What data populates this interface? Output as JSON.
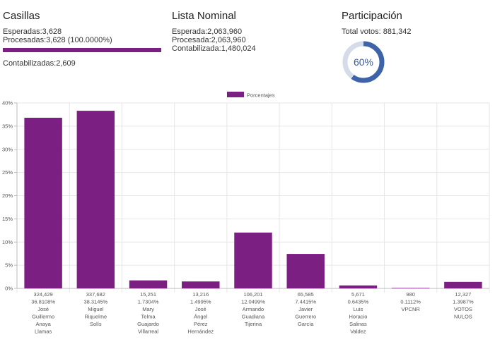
{
  "casillas": {
    "title": "Casillas",
    "esperadas": "Esperadas:3,628",
    "procesadas": "Procesadas:3,628 (100.0000%)",
    "progress_fraction": 1.0,
    "contabilizadas": "Contabilizadas:2,609"
  },
  "lista_nominal": {
    "title": "Lista Nominal",
    "esperada": "Esperada:2,063,960",
    "procesada": "Procesada:2,063,960",
    "contabilizada": "Contabilizada:1,480,024"
  },
  "participacion": {
    "title": "Participación",
    "total": "Total votos: 881,342",
    "percent_label": "60%",
    "fraction": 0.6
  },
  "colors": {
    "bar": "#7b1f82",
    "donut_fill": "#3f63a8",
    "donut_track": "#d5dbe8"
  },
  "chart_data": {
    "type": "bar",
    "legend": "Porcentajes",
    "legend_position": "top-center",
    "grid": true,
    "ylim": [
      0,
      40
    ],
    "yticks": [
      "0%",
      "5%",
      "10%",
      "15%",
      "20%",
      "25%",
      "30%",
      "35%",
      "40%"
    ],
    "categories": [
      {
        "votes": "324,429",
        "pct": "36.8108%",
        "name": [
          "José",
          "Guillermo",
          "Anaya",
          "Llamas"
        ]
      },
      {
        "votes": "337,682",
        "pct": "38.3145%",
        "name": [
          "Miguel",
          "Riquelme",
          "Solís"
        ]
      },
      {
        "votes": "15,251",
        "pct": "1.7304%",
        "name": [
          "Mary",
          "Telma",
          "Guajardo",
          "Villarreal"
        ]
      },
      {
        "votes": "13,216",
        "pct": "1.4995%",
        "name": [
          "José",
          "Ángel",
          "Pérez",
          "Hernández"
        ]
      },
      {
        "votes": "106,201",
        "pct": "12.0499%",
        "name": [
          "Armando",
          "Guadiana",
          "Tijerina"
        ]
      },
      {
        "votes": "65,585",
        "pct": "7.4415%",
        "name": [
          "Javier",
          "Guerrero",
          "García"
        ]
      },
      {
        "votes": "5,671",
        "pct": "0.6435%",
        "name": [
          "Luis",
          "Horacio",
          "Salinas",
          "Valdez"
        ]
      },
      {
        "votes": "980",
        "pct": "0.1112%",
        "name": [
          "VPCNR"
        ]
      },
      {
        "votes": "12,327",
        "pct": "1.3987%",
        "name": [
          "VOTOS",
          "NULOS"
        ]
      }
    ],
    "values": [
      36.8108,
      38.3145,
      1.7304,
      1.4995,
      12.0499,
      7.4415,
      0.6435,
      0.1112,
      1.3987
    ]
  }
}
